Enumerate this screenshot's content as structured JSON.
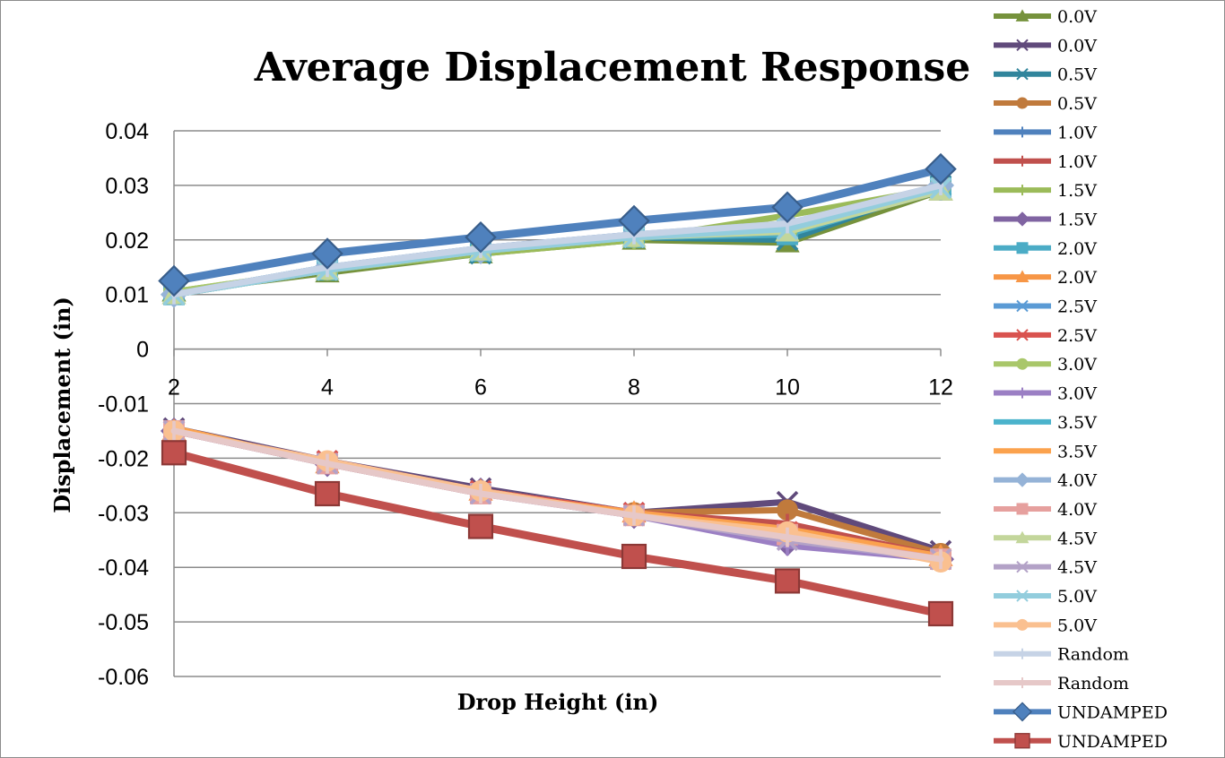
{
  "chart_data": {
    "type": "line",
    "title": "Average Displacement Response",
    "xlabel": "Drop Height (in)",
    "ylabel": "Displacement (in)",
    "ylim": [
      -0.06,
      0.04
    ],
    "yticks": [
      0.04,
      0.03,
      0.02,
      0.01,
      0,
      -0.01,
      -0.02,
      -0.03,
      -0.04,
      -0.05,
      -0.06
    ],
    "ytick_labels": [
      "0.04",
      "0.03",
      "0.02",
      "0.01",
      "0",
      "-0.01",
      "-0.02",
      "-0.03",
      "-0.04",
      "-0.05",
      "-0.06"
    ],
    "x": [
      2,
      4,
      6,
      8,
      10,
      12
    ],
    "x_tick_labels": [
      "2",
      "4",
      "6",
      "8",
      "10",
      "12"
    ],
    "grid": true,
    "legend_position": "right",
    "series": [
      {
        "name": "0.0V",
        "color": "#76923c",
        "marker": "triangle",
        "values": [
          0.0105,
          0.014,
          0.0175,
          0.02,
          0.0195,
          0.029
        ]
      },
      {
        "name": "0.0V",
        "color": "#604a7b",
        "marker": "x",
        "values": [
          -0.0145,
          -0.0205,
          -0.0255,
          -0.03,
          -0.028,
          -0.037
        ]
      },
      {
        "name": "0.5V",
        "color": "#31859c",
        "marker": "x",
        "values": [
          0.01,
          0.0145,
          0.0175,
          0.0205,
          0.02,
          0.03
        ]
      },
      {
        "name": "0.5V",
        "color": "#c07a3c",
        "marker": "circle",
        "values": [
          -0.015,
          -0.021,
          -0.026,
          -0.03,
          -0.0295,
          -0.0375
        ]
      },
      {
        "name": "1.0V",
        "color": "#4f81bd",
        "marker": "bar",
        "values": [
          0.01,
          0.015,
          0.0185,
          0.021,
          0.0215,
          0.029
        ]
      },
      {
        "name": "1.0V",
        "color": "#c0504d",
        "marker": "bar",
        "values": [
          -0.015,
          -0.021,
          -0.0265,
          -0.03,
          -0.032,
          -0.038
        ]
      },
      {
        "name": "1.5V",
        "color": "#9bbb59",
        "marker": "bar",
        "values": [
          0.0105,
          0.0145,
          0.0175,
          0.02,
          0.0245,
          0.0295
        ]
      },
      {
        "name": "1.5V",
        "color": "#8064a2",
        "marker": "diamond",
        "values": [
          -0.015,
          -0.021,
          -0.026,
          -0.0305,
          -0.0355,
          -0.0385
        ]
      },
      {
        "name": "2.0V",
        "color": "#4bacc6",
        "marker": "square",
        "values": [
          0.01,
          0.0145,
          0.018,
          0.0205,
          0.021,
          0.0295
        ]
      },
      {
        "name": "2.0V",
        "color": "#f79646",
        "marker": "triangle",
        "values": [
          -0.015,
          -0.021,
          -0.026,
          -0.03,
          -0.034,
          -0.038
        ]
      },
      {
        "name": "2.5V",
        "color": "#5b9bd5",
        "marker": "x",
        "values": [
          0.01,
          0.0145,
          0.018,
          0.0205,
          0.0215,
          0.0295
        ]
      },
      {
        "name": "2.5V",
        "color": "#d9534f",
        "marker": "x",
        "values": [
          -0.015,
          -0.0205,
          -0.026,
          -0.03,
          -0.0335,
          -0.0385
        ]
      },
      {
        "name": "3.0V",
        "color": "#a9c76a",
        "marker": "circle",
        "values": [
          0.0105,
          0.0145,
          0.018,
          0.0205,
          0.022,
          0.03
        ]
      },
      {
        "name": "3.0V",
        "color": "#9b7fc4",
        "marker": "bar",
        "values": [
          -0.015,
          -0.021,
          -0.0265,
          -0.0305,
          -0.036,
          -0.0385
        ]
      },
      {
        "name": "3.5V",
        "color": "#4bb3cc",
        "marker": "none",
        "values": [
          0.01,
          0.015,
          0.018,
          0.0205,
          0.0225,
          0.0295
        ]
      },
      {
        "name": "3.5V",
        "color": "#fba24d",
        "marker": "none",
        "values": [
          -0.0145,
          -0.021,
          -0.0265,
          -0.03,
          -0.033,
          -0.038
        ]
      },
      {
        "name": "4.0V",
        "color": "#95b3d7",
        "marker": "diamond",
        "values": [
          0.01,
          0.015,
          0.018,
          0.021,
          0.023,
          0.03
        ]
      },
      {
        "name": "4.0V",
        "color": "#e6a09e",
        "marker": "square",
        "values": [
          -0.015,
          -0.021,
          -0.0265,
          -0.0305,
          -0.034,
          -0.0385
        ]
      },
      {
        "name": "4.5V",
        "color": "#c3d69b",
        "marker": "triangle",
        "values": [
          0.01,
          0.0145,
          0.018,
          0.0205,
          0.0215,
          0.029
        ]
      },
      {
        "name": "4.5V",
        "color": "#b3a2c7",
        "marker": "x",
        "values": [
          -0.015,
          -0.021,
          -0.0265,
          -0.0305,
          -0.035,
          -0.0385
        ]
      },
      {
        "name": "5.0V",
        "color": "#93cddd",
        "marker": "x",
        "values": [
          0.01,
          0.0145,
          0.018,
          0.0205,
          0.022,
          0.0295
        ]
      },
      {
        "name": "5.0V",
        "color": "#fac090",
        "marker": "circle",
        "values": [
          -0.015,
          -0.0205,
          -0.026,
          -0.0305,
          -0.0335,
          -0.039
        ]
      },
      {
        "name": "Random",
        "color": "#c6d3e6",
        "marker": "bar",
        "values": [
          0.01,
          0.015,
          0.0185,
          0.021,
          0.023,
          0.03
        ]
      },
      {
        "name": "Random",
        "color": "#e6c8c8",
        "marker": "bar",
        "values": [
          -0.015,
          -0.021,
          -0.0265,
          -0.0305,
          -0.0345,
          -0.0385
        ]
      },
      {
        "name": "UNDAMPED",
        "color": "#4f81bd",
        "outline": "#385d8a",
        "marker": "diamond",
        "values": [
          0.0125,
          0.0175,
          0.0205,
          0.0235,
          0.026,
          0.033
        ]
      },
      {
        "name": "UNDAMPED",
        "color": "#c0504d",
        "outline": "#8c3836",
        "marker": "square",
        "values": [
          -0.019,
          -0.0265,
          -0.0325,
          -0.038,
          -0.0425,
          -0.0485
        ]
      }
    ]
  }
}
